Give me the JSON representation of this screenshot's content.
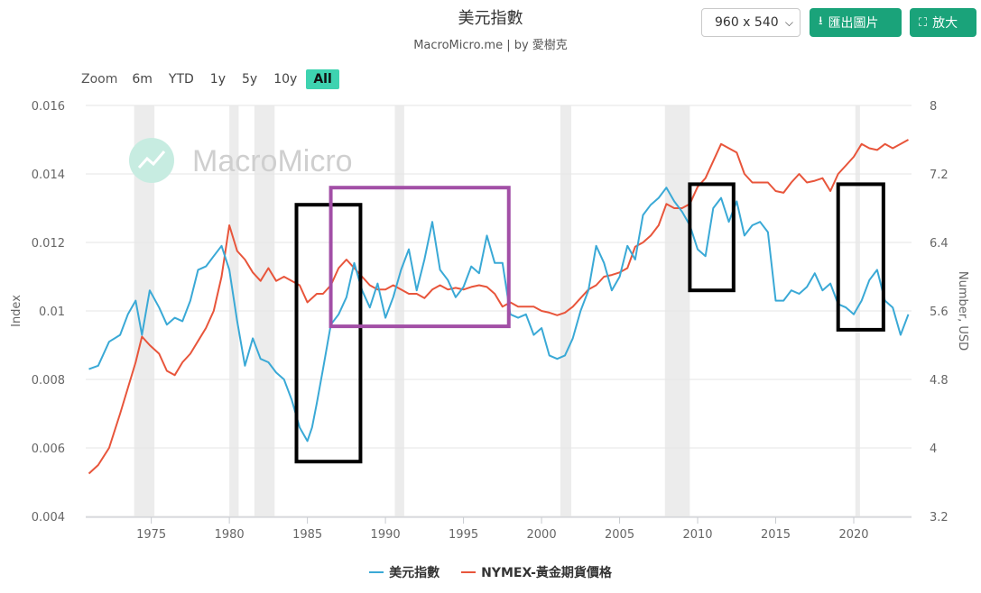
{
  "header": {
    "title": "美元指數",
    "subtitle": "MacroMicro.me | by 愛樹克",
    "size_value": "960 x 540",
    "export_label": "匯出圖片",
    "enlarge_label": "放大"
  },
  "zoom": {
    "label": "Zoom",
    "options": [
      "6m",
      "YTD",
      "1y",
      "5y",
      "10y",
      "All"
    ],
    "active": "All"
  },
  "watermark": "MacroMicro",
  "colors": {
    "usd": "#3aa9d6",
    "gold": "#e8553b",
    "accent": "#1aa37a",
    "purple_box": "#a24fa6"
  },
  "chart_data": {
    "type": "line",
    "x_range": [
      1970.8,
      2023.7
    ],
    "x_ticks": [
      1975,
      1980,
      1985,
      1990,
      1995,
      2000,
      2005,
      2010,
      2015,
      2020
    ],
    "y_left": {
      "label": "Index",
      "range": [
        0.004,
        0.016
      ],
      "ticks": [
        "0.004",
        "0.006",
        "0.008",
        "0.01",
        "0.012",
        "0.014",
        "0.016"
      ]
    },
    "y_right": {
      "label": "Number, USD",
      "range": [
        3.2,
        8
      ],
      "ticks": [
        "3.2",
        "4",
        "4.8",
        "5.6",
        "6.4",
        "7.2",
        "8"
      ]
    },
    "recessions": [
      [
        1973.9,
        1975.2
      ],
      [
        1980.0,
        1980.6
      ],
      [
        1981.6,
        1982.9
      ],
      [
        1990.6,
        1991.2
      ],
      [
        2001.2,
        2001.9
      ],
      [
        2007.9,
        2009.5
      ],
      [
        2020.1,
        2020.4
      ]
    ],
    "series": [
      {
        "name": "美元指數",
        "axis": "left",
        "x": [
          1971.0,
          1971.6,
          1972.3,
          1973.0,
          1973.5,
          1974.0,
          1974.4,
          1974.9,
          1975.5,
          1976.0,
          1976.5,
          1977.0,
          1977.5,
          1978.0,
          1978.5,
          1979.0,
          1979.5,
          1980.0,
          1980.5,
          1981.0,
          1981.5,
          1982.0,
          1982.5,
          1983.0,
          1983.5,
          1984.0,
          1984.5,
          1985.0,
          1985.3,
          1985.6,
          1986.0,
          1986.5,
          1987.0,
          1987.5,
          1988.0,
          1988.5,
          1989.0,
          1989.5,
          1990.0,
          1990.5,
          1991.0,
          1991.5,
          1992.0,
          1992.5,
          1993.0,
          1993.5,
          1994.0,
          1994.5,
          1995.0,
          1995.5,
          1996.0,
          1996.5,
          1997.0,
          1997.5,
          1998.0,
          1998.5,
          1999.0,
          1999.5,
          2000.0,
          2000.5,
          2001.0,
          2001.5,
          2002.0,
          2002.5,
          2003.0,
          2003.5,
          2004.0,
          2004.5,
          2005.0,
          2005.5,
          2006.0,
          2006.5,
          2007.0,
          2007.5,
          2008.0,
          2008.5,
          2009.0,
          2009.5,
          2010.0,
          2010.5,
          2011.0,
          2011.5,
          2012.0,
          2012.5,
          2013.0,
          2013.5,
          2014.0,
          2014.5,
          2015.0,
          2015.5,
          2016.0,
          2016.5,
          2017.0,
          2017.5,
          2018.0,
          2018.5,
          2019.0,
          2019.5,
          2020.0,
          2020.5,
          2021.0,
          2021.5,
          2022.0,
          2022.5,
          2023.0,
          2023.5
        ],
        "y": [
          0.0083,
          0.0084,
          0.0091,
          0.0093,
          0.0099,
          0.0103,
          0.0093,
          0.0106,
          0.0101,
          0.0096,
          0.0098,
          0.0097,
          0.0103,
          0.0112,
          0.0113,
          0.0116,
          0.0119,
          0.0112,
          0.0097,
          0.0084,
          0.0092,
          0.0086,
          0.0085,
          0.0082,
          0.008,
          0.0074,
          0.0066,
          0.0062,
          0.0066,
          0.0073,
          0.0083,
          0.0096,
          0.0099,
          0.0104,
          0.0114,
          0.0106,
          0.0101,
          0.0108,
          0.0098,
          0.0104,
          0.0112,
          0.0118,
          0.0106,
          0.0115,
          0.0126,
          0.0112,
          0.0109,
          0.0104,
          0.0107,
          0.0113,
          0.0111,
          0.0122,
          0.0114,
          0.0114,
          0.0099,
          0.0098,
          0.0099,
          0.0093,
          0.0095,
          0.0087,
          0.0086,
          0.0087,
          0.0092,
          0.01,
          0.0106,
          0.0119,
          0.0114,
          0.0106,
          0.011,
          0.0119,
          0.0115,
          0.0128,
          0.0131,
          0.0133,
          0.0136,
          0.0132,
          0.0129,
          0.0125,
          0.0118,
          0.0116,
          0.013,
          0.0133,
          0.0126,
          0.0132,
          0.0122,
          0.0125,
          0.0126,
          0.0123,
          0.0103,
          0.0103,
          0.0106,
          0.0105,
          0.0107,
          0.0111,
          0.0106,
          0.0108,
          0.0102,
          0.0101,
          0.0099,
          0.0103,
          0.0109,
          0.0112,
          0.0103,
          0.0101,
          0.0093,
          0.0099
        ],
        "color": "#3aa9d6"
      },
      {
        "name": "NYMEX-黃金期貨價格",
        "axis": "right",
        "x": [
          1971.0,
          1971.6,
          1972.3,
          1973.0,
          1973.5,
          1974.0,
          1974.4,
          1974.9,
          1975.5,
          1976.0,
          1976.5,
          1977.0,
          1977.5,
          1978.0,
          1978.5,
          1979.0,
          1979.5,
          1980.0,
          1980.5,
          1981.0,
          1981.5,
          1982.0,
          1982.5,
          1983.0,
          1983.5,
          1984.0,
          1984.5,
          1985.0,
          1985.3,
          1985.6,
          1986.0,
          1986.5,
          1987.0,
          1987.5,
          1988.0,
          1988.5,
          1989.0,
          1989.5,
          1990.0,
          1990.5,
          1991.0,
          1991.5,
          1992.0,
          1992.5,
          1993.0,
          1993.5,
          1994.0,
          1994.5,
          1995.0,
          1995.5,
          1996.0,
          1996.5,
          1997.0,
          1997.5,
          1998.0,
          1998.5,
          1999.0,
          1999.5,
          2000.0,
          2000.5,
          2001.0,
          2001.5,
          2002.0,
          2002.5,
          2003.0,
          2003.5,
          2004.0,
          2004.5,
          2005.0,
          2005.5,
          2006.0,
          2006.5,
          2007.0,
          2007.5,
          2008.0,
          2008.5,
          2009.0,
          2009.5,
          2010.0,
          2010.5,
          2011.0,
          2011.5,
          2012.0,
          2012.5,
          2013.0,
          2013.5,
          2014.0,
          2014.5,
          2015.0,
          2015.5,
          2016.0,
          2016.5,
          2017.0,
          2017.5,
          2018.0,
          2018.5,
          2019.0,
          2019.5,
          2020.0,
          2020.5,
          2021.0,
          2021.5,
          2022.0,
          2022.5,
          2023.0,
          2023.5
        ],
        "y": [
          3.7,
          3.8,
          4.0,
          4.4,
          4.7,
          5.0,
          5.3,
          5.2,
          5.1,
          4.9,
          4.85,
          5.0,
          5.1,
          5.25,
          5.4,
          5.6,
          6.0,
          6.6,
          6.3,
          6.2,
          6.05,
          5.95,
          6.1,
          5.95,
          6.0,
          5.95,
          5.9,
          5.7,
          5.75,
          5.8,
          5.8,
          5.9,
          6.1,
          6.2,
          6.1,
          6.0,
          5.9,
          5.85,
          5.85,
          5.9,
          5.85,
          5.8,
          5.8,
          5.75,
          5.85,
          5.9,
          5.85,
          5.87,
          5.85,
          5.88,
          5.9,
          5.88,
          5.8,
          5.65,
          5.7,
          5.65,
          5.65,
          5.65,
          5.6,
          5.58,
          5.55,
          5.58,
          5.65,
          5.75,
          5.85,
          5.9,
          6.0,
          6.02,
          6.05,
          6.1,
          6.35,
          6.4,
          6.48,
          6.6,
          6.85,
          6.8,
          6.8,
          6.85,
          7.05,
          7.15,
          7.35,
          7.55,
          7.5,
          7.45,
          7.2,
          7.1,
          7.1,
          7.1,
          7.0,
          6.98,
          7.1,
          7.2,
          7.1,
          7.12,
          7.15,
          7.0,
          7.2,
          7.3,
          7.4,
          7.55,
          7.5,
          7.48,
          7.55,
          7.5,
          7.55,
          7.6
        ],
        "color": "#e8553b"
      }
    ],
    "highlight_boxes": [
      {
        "x": [
          1984.3,
          1988.4
        ],
        "y": [
          0.0056,
          0.0131
        ],
        "color": "#000000"
      },
      {
        "x": [
          1986.5,
          1997.9
        ],
        "y": [
          0.00955,
          0.0136
        ],
        "color": "#a24fa6"
      },
      {
        "x": [
          2009.5,
          2012.3
        ],
        "y": [
          0.0106,
          0.0137
        ],
        "color": "#000000"
      },
      {
        "x": [
          2019.0,
          2021.9
        ],
        "y": [
          0.00945,
          0.0137
        ],
        "color": "#000000"
      }
    ]
  }
}
